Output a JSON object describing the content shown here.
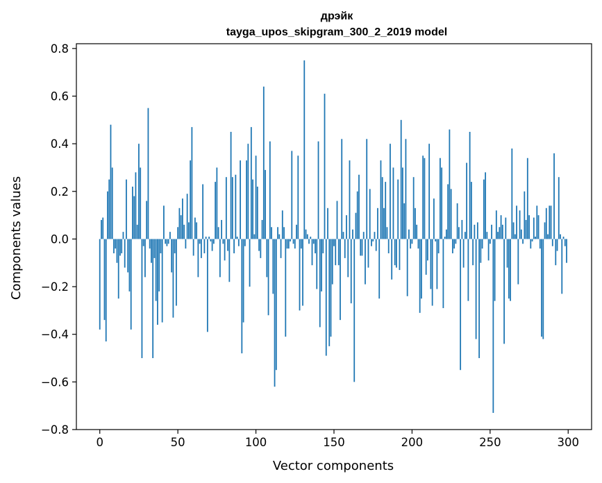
{
  "chart_data": {
    "type": "bar",
    "title": "дрэйк",
    "subtitle": "tayga_upos_skipgram_300_2_2019 model",
    "xlabel": "Vector components",
    "ylabel": "Components values",
    "xlim": [
      -15,
      315
    ],
    "ylim": [
      -0.8,
      0.82
    ],
    "xticks": [
      0,
      50,
      100,
      150,
      200,
      250,
      300
    ],
    "xtick_labels": [
      "0",
      "50",
      "100",
      "150",
      "200",
      "250",
      "300"
    ],
    "yticks": [
      -0.8,
      -0.6,
      -0.4,
      -0.2,
      0.0,
      0.2,
      0.4,
      0.6,
      0.8
    ],
    "ytick_labels": [
      "−0.8",
      "−0.6",
      "−0.4",
      "−0.2",
      "0.0",
      "0.2",
      "0.4",
      "0.6",
      "0.8"
    ],
    "bar_color": "#1f77b4",
    "grid": false,
    "legend": "none",
    "x": [
      0,
      1,
      2,
      3,
      4,
      5,
      6,
      7,
      8,
      9,
      10,
      11,
      12,
      13,
      14,
      15,
      16,
      17,
      18,
      19,
      20,
      21,
      22,
      23,
      24,
      25,
      26,
      27,
      28,
      29,
      30,
      31,
      32,
      33,
      34,
      35,
      36,
      37,
      38,
      39,
      40,
      41,
      42,
      43,
      44,
      45,
      46,
      47,
      48,
      49,
      50,
      51,
      52,
      53,
      54,
      55,
      56,
      57,
      58,
      59,
      60,
      61,
      62,
      63,
      64,
      65,
      66,
      67,
      68,
      69,
      70,
      71,
      72,
      73,
      74,
      75,
      76,
      77,
      78,
      79,
      80,
      81,
      82,
      83,
      84,
      85,
      86,
      87,
      88,
      89,
      90,
      91,
      92,
      93,
      94,
      95,
      96,
      97,
      98,
      99,
      100,
      101,
      102,
      103,
      104,
      105,
      106,
      107,
      108,
      109,
      110,
      111,
      112,
      113,
      114,
      115,
      116,
      117,
      118,
      119,
      120,
      121,
      122,
      123,
      124,
      125,
      126,
      127,
      128,
      129,
      130,
      131,
      132,
      133,
      134,
      135,
      136,
      137,
      138,
      139,
      140,
      141,
      142,
      143,
      144,
      145,
      146,
      147,
      148,
      149,
      150,
      151,
      152,
      153,
      154,
      155,
      156,
      157,
      158,
      159,
      160,
      161,
      162,
      163,
      164,
      165,
      166,
      167,
      168,
      169,
      170,
      171,
      172,
      173,
      174,
      175,
      176,
      177,
      178,
      179,
      180,
      181,
      182,
      183,
      184,
      185,
      186,
      187,
      188,
      189,
      190,
      191,
      192,
      193,
      194,
      195,
      196,
      197,
      198,
      199,
      200,
      201,
      202,
      203,
      204,
      205,
      206,
      207,
      208,
      209,
      210,
      211,
      212,
      213,
      214,
      215,
      216,
      217,
      218,
      219,
      220,
      221,
      222,
      223,
      224,
      225,
      226,
      227,
      228,
      229,
      230,
      231,
      232,
      233,
      234,
      235,
      236,
      237,
      238,
      239,
      240,
      241,
      242,
      243,
      244,
      245,
      246,
      247,
      248,
      249,
      250,
      251,
      252,
      253,
      254,
      255,
      256,
      257,
      258,
      259,
      260,
      261,
      262,
      263,
      264,
      265,
      266,
      267,
      268,
      269,
      270,
      271,
      272,
      273,
      274,
      275,
      276,
      277,
      278,
      279,
      280,
      281,
      282,
      283,
      284,
      285,
      286,
      287,
      288,
      289,
      290,
      291,
      292,
      293,
      294,
      295,
      296,
      297,
      298,
      299
    ],
    "values": [
      -0.38,
      0.08,
      0.09,
      -0.34,
      -0.43,
      0.2,
      0.25,
      0.48,
      0.3,
      -0.06,
      -0.04,
      -0.1,
      -0.25,
      -0.07,
      -0.06,
      0.03,
      -0.12,
      0.25,
      -0.14,
      -0.22,
      -0.38,
      0.22,
      0.18,
      0.28,
      0.06,
      0.4,
      0.3,
      -0.5,
      -0.03,
      -0.16,
      0.16,
      0.55,
      -0.04,
      -0.1,
      -0.5,
      -0.08,
      -0.26,
      -0.36,
      -0.22,
      -0.06,
      -0.35,
      0.14,
      -0.02,
      -0.03,
      -0.02,
      0.03,
      -0.14,
      -0.33,
      -0.06,
      -0.28,
      0.05,
      0.13,
      0.1,
      0.17,
      0.06,
      -0.04,
      0.19,
      0.07,
      0.33,
      0.47,
      -0.07,
      0.09,
      0.07,
      -0.16,
      -0.02,
      -0.08,
      0.23,
      -0.06,
      0.01,
      -0.39,
      0.01,
      -0.01,
      -0.05,
      -0.02,
      0.24,
      0.3,
      0.05,
      -0.16,
      0.08,
      -0.02,
      -0.09,
      0.26,
      -0.05,
      -0.18,
      0.45,
      0.26,
      -0.06,
      0.27,
      0.01,
      -0.03,
      0.33,
      -0.48,
      -0.35,
      -0.03,
      0.33,
      0.4,
      -0.2,
      0.47,
      0.25,
      0.02,
      0.35,
      0.22,
      -0.05,
      -0.08,
      0.08,
      0.64,
      0.29,
      -0.16,
      -0.32,
      0.41,
      0.05,
      -0.23,
      -0.62,
      -0.55,
      0.05,
      0.02,
      -0.08,
      0.12,
      0.05,
      -0.41,
      -0.04,
      -0.04,
      -0.01,
      0.37,
      -0.02,
      -0.04,
      0.06,
      0.35,
      -0.3,
      -0.04,
      -0.28,
      0.75,
      0.04,
      0.02,
      -0.02,
      0.01,
      -0.11,
      -0.02,
      -0.06,
      -0.21,
      0.41,
      -0.37,
      -0.22,
      -0.06,
      0.61,
      -0.49,
      0.13,
      -0.45,
      -0.41,
      -0.19,
      -0.03,
      -0.11,
      0.16,
      -0.11,
      -0.34,
      0.42,
      0.03,
      -0.08,
      0.1,
      -0.16,
      0.33,
      -0.27,
      0.04,
      -0.6,
      0.11,
      0.2,
      0.27,
      -0.07,
      -0.07,
      0.03,
      -0.19,
      0.42,
      -0.12,
      0.21,
      -0.03,
      -0.01,
      0.03,
      -0.05,
      0.13,
      -0.25,
      0.33,
      0.26,
      0.13,
      0.24,
      0.05,
      -0.06,
      0.4,
      -0.17,
      0.3,
      -0.11,
      -0.12,
      0.25,
      -0.13,
      0.5,
      0.3,
      0.15,
      0.42,
      -0.24,
      0.04,
      -0.04,
      -0.02,
      0.26,
      0.13,
      0.06,
      -0.04,
      -0.31,
      -0.25,
      0.35,
      0.34,
      -0.15,
      -0.09,
      0.4,
      -0.21,
      -0.28,
      0.17,
      -0.01,
      -0.21,
      -0.06,
      0.34,
      0.3,
      -0.29,
      0.01,
      0.04,
      0.23,
      0.46,
      0.21,
      -0.06,
      -0.04,
      -0.02,
      0.15,
      0.05,
      -0.55,
      0.08,
      -0.12,
      0.03,
      0.32,
      -0.26,
      0.45,
      0.24,
      -0.11,
      0.06,
      -0.42,
      0.07,
      -0.5,
      -0.1,
      -0.04,
      0.25,
      0.28,
      0.03,
      -0.09,
      -0.02,
      0.06,
      -0.73,
      -0.26,
      0.12,
      0.03,
      0.05,
      0.1,
      0.06,
      -0.44,
      0.09,
      -0.12,
      -0.25,
      -0.26,
      0.38,
      0.07,
      0.02,
      0.14,
      -0.19,
      0.12,
      0.04,
      -0.02,
      0.2,
      0.08,
      0.34,
      0.1,
      -0.04,
      -0.01,
      0.09,
      0.01,
      0.14,
      0.1,
      -0.04,
      -0.41,
      -0.42,
      0.07,
      0.13,
      0.02,
      0.14,
      0.14,
      -0.03,
      0.36,
      -0.11,
      -0.05,
      0.26,
      0.02,
      -0.23,
      0.01,
      -0.03,
      -0.1
    ]
  }
}
